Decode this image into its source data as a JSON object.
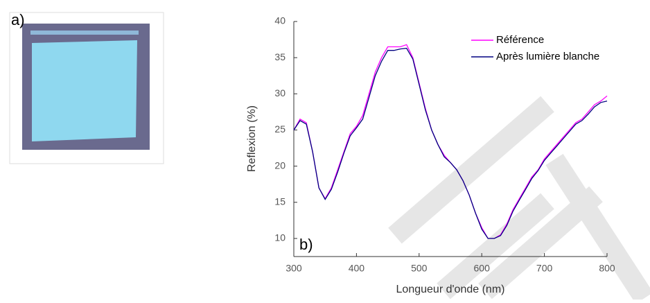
{
  "figure_label": "a)",
  "chart_data": {
    "type": "line",
    "x_label": "Longueur d'onde (nm)",
    "y_label": "Reflexion (%)",
    "annotation": "b)",
    "x": [
      300,
      310,
      320,
      330,
      340,
      350,
      360,
      370,
      380,
      390,
      400,
      410,
      420,
      430,
      440,
      450,
      460,
      470,
      480,
      490,
      500,
      510,
      520,
      530,
      540,
      550,
      560,
      570,
      580,
      590,
      600,
      610,
      620,
      630,
      640,
      650,
      660,
      670,
      680,
      690,
      700,
      710,
      720,
      730,
      740,
      750,
      760,
      770,
      780,
      790,
      800
    ],
    "series": [
      {
        "name": "Référence",
        "color": "#ff00ff",
        "values": [
          25,
          26.5,
          26,
          22,
          17,
          15.5,
          17,
          19.5,
          22,
          24.5,
          25.5,
          27,
          30,
          33,
          35,
          36.5,
          36.5,
          36.5,
          36.8,
          35,
          31.5,
          28,
          25,
          23,
          21.5,
          20.5,
          19.5,
          18,
          16,
          13.5,
          11.5,
          10,
          10,
          10.5,
          12,
          14,
          15.5,
          17,
          18.5,
          19.5,
          21,
          22,
          23,
          24,
          25,
          26,
          26.5,
          27.5,
          28.5,
          29,
          29.7
        ]
      },
      {
        "name": "Après lumière blanche",
        "color": "#000080",
        "values": [
          25,
          26.3,
          25.8,
          22,
          17,
          15.4,
          16.8,
          19.2,
          21.8,
          24.2,
          25.3,
          26.5,
          29.5,
          32.5,
          34.5,
          36,
          36,
          36.2,
          36.3,
          34.8,
          31.3,
          27.8,
          25,
          23,
          21.3,
          20.5,
          19.5,
          18,
          16,
          13.5,
          11.3,
          10,
          10,
          10.4,
          11.8,
          13.8,
          15.3,
          16.8,
          18.3,
          19.4,
          20.8,
          21.8,
          22.8,
          23.8,
          24.8,
          25.8,
          26.3,
          27.2,
          28.2,
          28.8,
          29
        ]
      }
    ],
    "xlim": [
      300,
      800
    ],
    "ylim": [
      7.5,
      40
    ],
    "xticks": [
      300,
      400,
      500,
      600,
      700,
      800
    ],
    "yticks": [
      10,
      15,
      20,
      25,
      30,
      35,
      40
    ],
    "legend": "top-right",
    "grid": false
  }
}
